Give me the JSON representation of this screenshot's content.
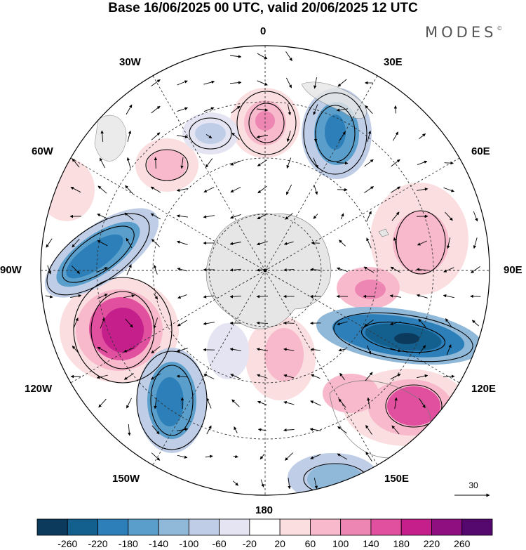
{
  "title": "Base 16/06/2025 00 UTC, valid 20/06/2025 12 UTC",
  "logo": {
    "text": "MODES",
    "mark": "©"
  },
  "longitude_labels": {
    "lon_0": "0",
    "lon_30e": "30E",
    "lon_60e": "60E",
    "lon_90e": "90E",
    "lon_120e": "120E",
    "lon_150e": "150E",
    "lon_180": "180",
    "lon_150w": "150W",
    "lon_120w": "120W",
    "lon_90w": "90W",
    "lon_60w": "60W",
    "lon_30w": "30W"
  },
  "reference_vector": {
    "label": "30"
  },
  "colorbar": {
    "labels": [
      "-260",
      "-220",
      "-180",
      "-140",
      "-100",
      "-60",
      "-20",
      "20",
      "60",
      "100",
      "140",
      "180",
      "220",
      "260"
    ],
    "colors": [
      "#0b3a5c",
      "#135f8e",
      "#2c7fb8",
      "#5a9fcc",
      "#8fb8d9",
      "#bfcde6",
      "#e4e4f2",
      "#ffffff",
      "#fbdfe0",
      "#f7b9cb",
      "#ee86b4",
      "#e0509e",
      "#c41f8a",
      "#8f0f80",
      "#55086e"
    ]
  },
  "colors": {
    "land": "#e6e6e6",
    "ocean": "#ffffff"
  }
}
